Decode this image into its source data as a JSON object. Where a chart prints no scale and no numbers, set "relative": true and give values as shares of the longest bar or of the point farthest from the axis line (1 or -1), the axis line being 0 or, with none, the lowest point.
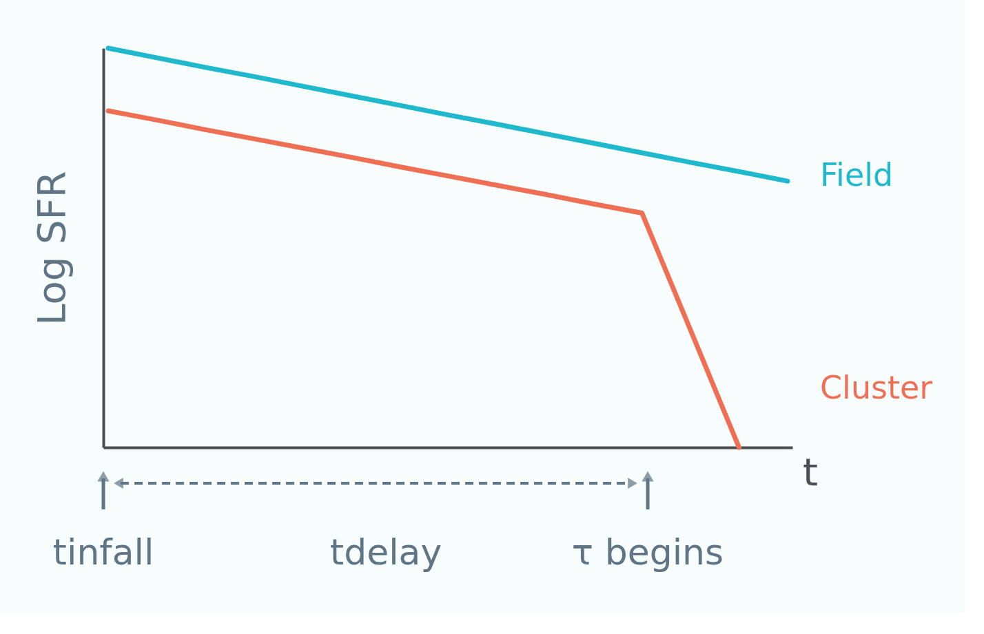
{
  "chart_data": {
    "type": "line",
    "relative": true,
    "xlabel": "t",
    "ylabel": "Log SFR",
    "tick_labels": false,
    "grid": false,
    "line_style": "solid",
    "categories": [
      null,
      null,
      null,
      null,
      null,
      null,
      null,
      null,
      null,
      null,
      null,
      null,
      null,
      null,
      null
    ],
    "series": [
      {
        "name": "Field",
        "color": "#1fb8cc",
        "values": [
          1,
          0.976,
          0.952,
          0.929,
          0.905,
          0.881,
          0.857,
          0.833,
          0.81,
          0.786,
          0.762,
          0.738,
          0.714,
          0.691,
          0.667
        ]
      },
      {
        "name": "Cluster",
        "color": "#ef6f55",
        "values": [
          0.843,
          0.82,
          0.796,
          0.773,
          0.75,
          0.727,
          0.703,
          0.68,
          0.657,
          0.634,
          0.61,
          0.587,
          0.294,
          0,
          null
        ]
      }
    ],
    "annotations": [
      "tinfall",
      "tdelay",
      "τ begins"
    ]
  }
}
